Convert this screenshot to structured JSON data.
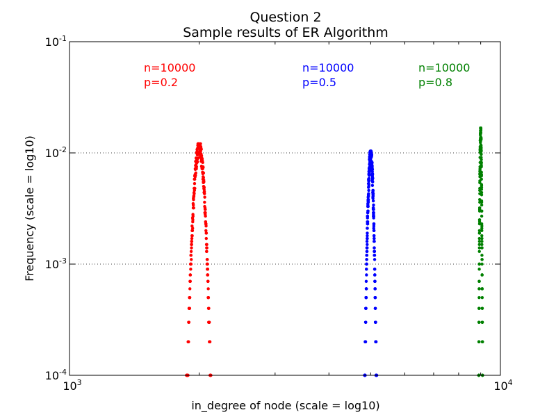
{
  "chart_data": {
    "type": "scatter",
    "title": "Question 2",
    "subtitle": "Sample results of ER Algorithm",
    "xlabel": "in_degree of node (scale = log10)",
    "ylabel": "Frequency (scale = log10)",
    "xscale": "log",
    "yscale": "log",
    "xlim": [
      1000,
      10000
    ],
    "ylim": [
      0.0001,
      0.1
    ],
    "grid": "y-major dotted",
    "x_ticks": [
      {
        "base": "10",
        "exp": "3"
      },
      {
        "base": "10",
        "exp": "4"
      }
    ],
    "y_ticks": [
      {
        "base": "10",
        "exp": "-4"
      },
      {
        "base": "10",
        "exp": "-3"
      },
      {
        "base": "10",
        "exp": "-2"
      },
      {
        "base": "10",
        "exp": "-1"
      }
    ],
    "annotations": [
      {
        "lines": [
          "n=10000",
          "p=0.2"
        ],
        "color": "#ff0000"
      },
      {
        "lines": [
          "n=10000",
          "p=0.5"
        ],
        "color": "#0000ff"
      },
      {
        "lines": [
          "n=10000",
          "p=0.8"
        ],
        "color": "#008000"
      }
    ],
    "series": [
      {
        "color": "#ff0000",
        "center": 2000,
        "sigma": 40,
        "peak": 0.0112
      },
      {
        "color": "#0000ff",
        "center": 5000,
        "sigma": 50,
        "peak": 0.0096
      },
      {
        "color": "#008000",
        "center": 9000,
        "sigma": 28,
        "peak": 0.0155
      }
    ]
  }
}
